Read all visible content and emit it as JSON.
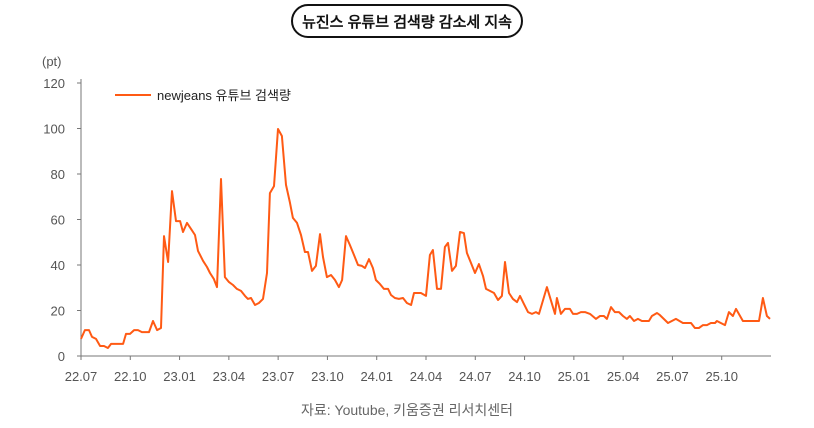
{
  "title": "뉴진스 유튜브 검색량 감소세 지속",
  "source": "자료: Youtube, 키움증권 리서치센터",
  "colors": {
    "line": "#ff5a14",
    "axis": "#777777",
    "text": "#555555"
  },
  "chart_data": {
    "type": "line",
    "title": "뉴진스 유튜브 검색량 감소세 지속",
    "ylabel": "(pt)",
    "xlabel": "",
    "ylim": [
      0,
      120
    ],
    "yticks": [
      0,
      20,
      40,
      60,
      80,
      100,
      120
    ],
    "xlim_months_from_22_07": [
      0,
      42
    ],
    "xticks": [
      {
        "label": "22.07",
        "m": 0
      },
      {
        "label": "22.10",
        "m": 3
      },
      {
        "label": "23.01",
        "m": 6
      },
      {
        "label": "23.04",
        "m": 9
      },
      {
        "label": "23.07",
        "m": 12
      },
      {
        "label": "23.10",
        "m": 15
      },
      {
        "label": "24.01",
        "m": 18
      },
      {
        "label": "24.04",
        "m": 21
      },
      {
        "label": "24.07",
        "m": 24
      },
      {
        "label": "24.10",
        "m": 27
      },
      {
        "label": "25.01",
        "m": 30
      },
      {
        "label": "25.04",
        "m": 33
      },
      {
        "label": "25.07",
        "m": 36
      },
      {
        "label": "25.10",
        "m": 39
      }
    ],
    "grid": false,
    "legend": "top-left",
    "series": [
      {
        "name": "newjeans 유튜브 검색량",
        "points": [
          [
            0,
            7.5
          ],
          [
            0.24,
            11.4
          ],
          [
            0.49,
            11.4
          ],
          [
            0.67,
            8.4
          ],
          [
            0.91,
            7.5
          ],
          [
            1.16,
            4.4
          ],
          [
            1.4,
            4.4
          ],
          [
            1.64,
            3.5
          ],
          [
            1.83,
            5.3
          ],
          [
            2.56,
            5.3
          ],
          [
            2.74,
            9.7
          ],
          [
            2.98,
            9.7
          ],
          [
            3.23,
            11.4
          ],
          [
            3.47,
            11.4
          ],
          [
            3.71,
            10.5
          ],
          [
            4.14,
            10.5
          ],
          [
            4.38,
            15.4
          ],
          [
            4.63,
            11.4
          ],
          [
            4.87,
            12.3
          ],
          [
            5.05,
            52.7
          ],
          [
            5.3,
            41.3
          ],
          [
            5.54,
            72.5
          ],
          [
            5.78,
            59.3
          ],
          [
            6.03,
            59.3
          ],
          [
            6.21,
            54.5
          ],
          [
            6.45,
            58.5
          ],
          [
            6.7,
            55.8
          ],
          [
            6.94,
            53.2
          ],
          [
            7.12,
            46.2
          ],
          [
            7.43,
            41.8
          ],
          [
            7.67,
            39.1
          ],
          [
            7.85,
            36.5
          ],
          [
            8.09,
            33.8
          ],
          [
            8.28,
            30.3
          ],
          [
            8.52,
            77.8
          ],
          [
            8.76,
            34.7
          ],
          [
            9.01,
            32.5
          ],
          [
            9.25,
            31.2
          ],
          [
            9.49,
            29.5
          ],
          [
            9.74,
            28.6
          ],
          [
            9.98,
            26.4
          ],
          [
            10.16,
            25.1
          ],
          [
            10.35,
            25.5
          ],
          [
            10.59,
            22.4
          ],
          [
            10.83,
            23.3
          ],
          [
            11.08,
            25.1
          ],
          [
            11.32,
            36.5
          ],
          [
            11.5,
            71.6
          ],
          [
            11.75,
            74.7
          ],
          [
            11.99,
            99.8
          ],
          [
            12.23,
            96.7
          ],
          [
            12.48,
            75.2
          ],
          [
            12.72,
            67.3
          ],
          [
            12.9,
            60.7
          ],
          [
            13.15,
            58.5
          ],
          [
            13.39,
            53.2
          ],
          [
            13.63,
            45.7
          ],
          [
            13.82,
            45.7
          ],
          [
            14.06,
            37.4
          ],
          [
            14.3,
            39.6
          ],
          [
            14.55,
            53.6
          ],
          [
            14.73,
            43.5
          ],
          [
            14.97,
            34.7
          ],
          [
            15.22,
            35.6
          ],
          [
            15.46,
            33.4
          ],
          [
            15.7,
            30.3
          ],
          [
            15.89,
            33.4
          ],
          [
            16.13,
            52.7
          ],
          [
            16.37,
            48.8
          ],
          [
            16.62,
            44.4
          ],
          [
            16.86,
            40
          ],
          [
            17.1,
            39.6
          ],
          [
            17.29,
            38.7
          ],
          [
            17.53,
            42.6
          ],
          [
            17.77,
            38.7
          ],
          [
            17.95,
            33.4
          ],
          [
            18.2,
            31.6
          ],
          [
            18.44,
            29.5
          ],
          [
            18.69,
            29.5
          ],
          [
            18.87,
            26.8
          ],
          [
            19.11,
            25.5
          ],
          [
            19.35,
            25.1
          ],
          [
            19.6,
            25.5
          ],
          [
            19.84,
            23.3
          ],
          [
            20.09,
            22.4
          ],
          [
            20.27,
            27.7
          ],
          [
            20.69,
            27.7
          ],
          [
            21,
            26.4
          ],
          [
            21.24,
            44.4
          ],
          [
            21.42,
            46.6
          ],
          [
            21.67,
            29.5
          ],
          [
            21.91,
            29.5
          ],
          [
            22.15,
            47.9
          ],
          [
            22.34,
            49.7
          ],
          [
            22.58,
            37.4
          ],
          [
            22.82,
            39.6
          ],
          [
            23.07,
            54.5
          ],
          [
            23.31,
            54
          ],
          [
            23.49,
            45.3
          ],
          [
            23.74,
            40.9
          ],
          [
            23.98,
            36.5
          ],
          [
            24.22,
            40.4
          ],
          [
            24.47,
            35.2
          ],
          [
            24.65,
            29.5
          ],
          [
            24.89,
            28.6
          ],
          [
            25.14,
            27.7
          ],
          [
            25.38,
            24.6
          ],
          [
            25.62,
            26.4
          ],
          [
            25.81,
            41.3
          ],
          [
            26.05,
            27.7
          ],
          [
            26.29,
            25.1
          ],
          [
            26.54,
            23.7
          ],
          [
            26.72,
            26.4
          ],
          [
            26.96,
            22.9
          ],
          [
            27.21,
            19.3
          ],
          [
            27.45,
            18.5
          ],
          [
            27.69,
            19.3
          ],
          [
            27.88,
            18.5
          ],
          [
            28.36,
            30.3
          ],
          [
            28.85,
            18.5
          ],
          [
            28.97,
            25.5
          ],
          [
            29.21,
            18.5
          ],
          [
            29.46,
            20.7
          ],
          [
            29.76,
            20.7
          ],
          [
            29.95,
            18.5
          ],
          [
            30.19,
            18.5
          ],
          [
            30.43,
            19.3
          ],
          [
            30.68,
            19.3
          ],
          [
            30.98,
            18.5
          ],
          [
            31.34,
            16.3
          ],
          [
            31.59,
            17.6
          ],
          [
            31.83,
            17.6
          ],
          [
            32.01,
            16.3
          ],
          [
            32.26,
            21.5
          ],
          [
            32.5,
            19.3
          ],
          [
            32.75,
            19.3
          ],
          [
            32.99,
            17.6
          ],
          [
            33.23,
            16.3
          ],
          [
            33.41,
            17.6
          ],
          [
            33.66,
            15.4
          ],
          [
            33.9,
            16.3
          ],
          [
            34.14,
            15.4
          ],
          [
            34.57,
            15.4
          ],
          [
            34.75,
            17.6
          ],
          [
            35.06,
            18.9
          ],
          [
            35.24,
            18
          ],
          [
            35.73,
            14.5
          ],
          [
            36.21,
            16.3
          ],
          [
            36.64,
            14.5
          ],
          [
            37.13,
            14.5
          ],
          [
            37.37,
            12.3
          ],
          [
            37.61,
            12.3
          ],
          [
            37.86,
            13.6
          ],
          [
            38.1,
            13.6
          ],
          [
            38.34,
            14.5
          ],
          [
            38.59,
            14.5
          ],
          [
            38.71,
            15.4
          ],
          [
            39.2,
            13.6
          ],
          [
            39.44,
            19.3
          ],
          [
            39.68,
            17.6
          ],
          [
            39.87,
            20.7
          ],
          [
            40.29,
            15.4
          ],
          [
            41.27,
            15.4
          ],
          [
            41.51,
            25.5
          ],
          [
            41.75,
            17.6
          ],
          [
            41.94,
            16.3
          ]
        ]
      }
    ]
  }
}
